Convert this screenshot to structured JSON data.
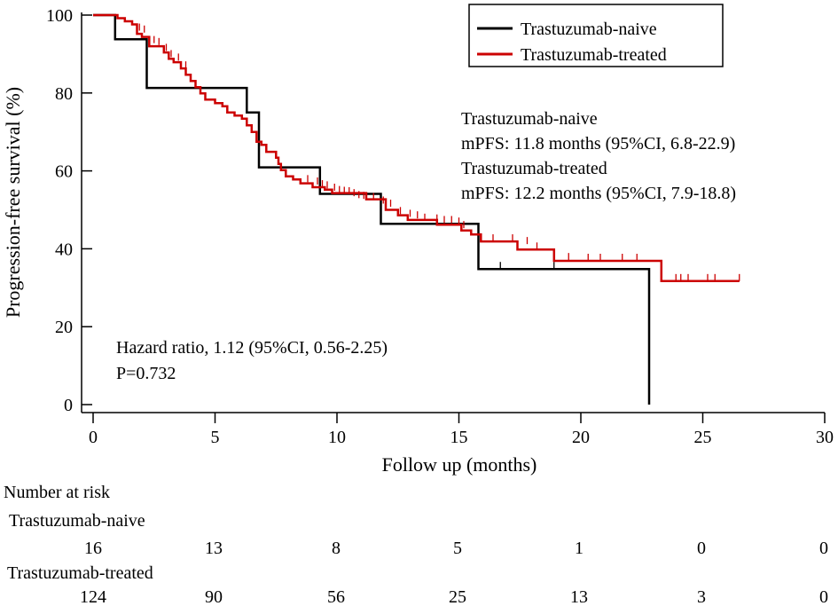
{
  "chart_data": {
    "type": "line",
    "subtype": "kaplan-meier",
    "title": "",
    "xlabel": "Follow up (months)",
    "ylabel": "Progression-free survival (%)",
    "xlim": [
      0,
      30
    ],
    "ylim": [
      0,
      100
    ],
    "xticks": [
      0,
      5,
      10,
      15,
      20,
      25,
      30
    ],
    "yticks": [
      0,
      20,
      40,
      60,
      80,
      100
    ],
    "legend_position": "top-right",
    "series": [
      {
        "name": "Trastuzumab-naive",
        "color": "#000000",
        "steps": [
          [
            0,
            100
          ],
          [
            0.9,
            100
          ],
          [
            0.9,
            93.8
          ],
          [
            2.2,
            93.8
          ],
          [
            2.2,
            81.3
          ],
          [
            6.3,
            81.3
          ],
          [
            6.3,
            75.0
          ],
          [
            6.8,
            75.0
          ],
          [
            6.8,
            60.9
          ],
          [
            9.3,
            60.9
          ],
          [
            9.3,
            54.1
          ],
          [
            11.8,
            54.1
          ],
          [
            11.8,
            46.4
          ],
          [
            15.8,
            46.4
          ],
          [
            15.8,
            34.8
          ],
          [
            22.8,
            34.8
          ],
          [
            22.8,
            0
          ]
        ],
        "censors": [
          [
            16.7,
            34.8
          ],
          [
            18.9,
            34.8
          ]
        ]
      },
      {
        "name": "Trastuzumab-treated",
        "color": "#cc0000",
        "steps": [
          [
            0,
            100
          ],
          [
            1.0,
            100
          ],
          [
            1.0,
            99.2
          ],
          [
            1.3,
            99.2
          ],
          [
            1.3,
            98.4
          ],
          [
            1.6,
            98.4
          ],
          [
            1.6,
            97.6
          ],
          [
            1.8,
            97.6
          ],
          [
            1.8,
            95.2
          ],
          [
            2.0,
            95.2
          ],
          [
            2.0,
            94.4
          ],
          [
            2.3,
            94.4
          ],
          [
            2.3,
            92.0
          ],
          [
            2.9,
            92.0
          ],
          [
            2.9,
            90.4
          ],
          [
            3.1,
            90.4
          ],
          [
            3.1,
            88.8
          ],
          [
            3.3,
            88.8
          ],
          [
            3.3,
            87.9
          ],
          [
            3.6,
            87.9
          ],
          [
            3.6,
            86.3
          ],
          [
            3.8,
            86.3
          ],
          [
            3.8,
            84.7
          ],
          [
            4.0,
            84.7
          ],
          [
            4.0,
            83.1
          ],
          [
            4.2,
            83.1
          ],
          [
            4.2,
            81.5
          ],
          [
            4.4,
            81.5
          ],
          [
            4.4,
            79.9
          ],
          [
            4.6,
            79.9
          ],
          [
            4.6,
            78.3
          ],
          [
            5.0,
            78.3
          ],
          [
            5.0,
            77.4
          ],
          [
            5.3,
            77.4
          ],
          [
            5.3,
            76.6
          ],
          [
            5.5,
            76.6
          ],
          [
            5.5,
            75.0
          ],
          [
            5.8,
            75.0
          ],
          [
            5.8,
            74.2
          ],
          [
            6.1,
            74.2
          ],
          [
            6.1,
            73.4
          ],
          [
            6.3,
            73.4
          ],
          [
            6.3,
            71.7
          ],
          [
            6.5,
            71.7
          ],
          [
            6.5,
            70.0
          ],
          [
            6.7,
            70.0
          ],
          [
            6.7,
            67.5
          ],
          [
            6.9,
            67.5
          ],
          [
            6.9,
            66.7
          ],
          [
            7.1,
            66.7
          ],
          [
            7.1,
            64.9
          ],
          [
            7.5,
            64.9
          ],
          [
            7.5,
            63.4
          ],
          [
            7.6,
            63.4
          ],
          [
            7.6,
            61.8
          ],
          [
            7.7,
            61.8
          ],
          [
            7.7,
            60.2
          ],
          [
            7.9,
            60.2
          ],
          [
            7.9,
            58.6
          ],
          [
            8.2,
            58.6
          ],
          [
            8.2,
            57.8
          ],
          [
            8.5,
            57.8
          ],
          [
            8.5,
            56.8
          ],
          [
            9.0,
            56.8
          ],
          [
            9.0,
            55.8
          ],
          [
            9.5,
            55.8
          ],
          [
            9.5,
            55.2
          ],
          [
            9.8,
            55.2
          ],
          [
            9.8,
            54.3
          ],
          [
            11.2,
            54.3
          ],
          [
            11.2,
            52.7
          ],
          [
            12.0,
            52.7
          ],
          [
            12.0,
            50.0
          ],
          [
            12.5,
            50.0
          ],
          [
            12.5,
            48.6
          ],
          [
            12.9,
            48.6
          ],
          [
            12.9,
            47.4
          ],
          [
            14.1,
            47.4
          ],
          [
            14.1,
            46.2
          ],
          [
            15.1,
            46.2
          ],
          [
            15.1,
            44.7
          ],
          [
            15.5,
            44.7
          ],
          [
            15.5,
            43.7
          ],
          [
            15.9,
            43.7
          ],
          [
            15.9,
            41.9
          ],
          [
            17.4,
            41.9
          ],
          [
            17.4,
            39.8
          ],
          [
            18.6,
            39.8
          ],
          [
            18.6,
            39.8
          ],
          [
            18.9,
            39.8
          ],
          [
            18.9,
            36.9
          ],
          [
            23.3,
            36.9
          ],
          [
            23.3,
            31.7
          ],
          [
            26.5,
            31.7
          ]
        ],
        "censors": [
          [
            1.9,
            96.0
          ],
          [
            2.1,
            95.5
          ],
          [
            2.5,
            92.8
          ],
          [
            2.7,
            92.3
          ],
          [
            3.0,
            90.8
          ],
          [
            3.2,
            89.2
          ],
          [
            3.5,
            88.3
          ],
          [
            3.8,
            86.3
          ],
          [
            8.8,
            57.1
          ],
          [
            9.2,
            56.5
          ],
          [
            9.4,
            55.8
          ],
          [
            9.6,
            55.5
          ],
          [
            9.9,
            54.9
          ],
          [
            10.1,
            54.3
          ],
          [
            10.3,
            54.1
          ],
          [
            10.5,
            54.0
          ],
          [
            10.7,
            53.5
          ],
          [
            10.9,
            53.0
          ],
          [
            11.1,
            52.8
          ],
          [
            11.5,
            52.5
          ],
          [
            11.9,
            51.6
          ],
          [
            12.2,
            50.8
          ],
          [
            12.6,
            48.9
          ],
          [
            13.0,
            48.2
          ],
          [
            13.3,
            47.8
          ],
          [
            13.6,
            47.2
          ],
          [
            14.1,
            47.0
          ],
          [
            14.4,
            46.6
          ],
          [
            14.7,
            46.6
          ],
          [
            15.0,
            46.2
          ],
          [
            15.2,
            45.3
          ],
          [
            16.4,
            41.9
          ],
          [
            17.2,
            41.9
          ],
          [
            17.8,
            41.2
          ],
          [
            18.2,
            39.8
          ],
          [
            19.5,
            37.1
          ],
          [
            20.3,
            36.9
          ],
          [
            20.8,
            36.9
          ],
          [
            21.7,
            36.9
          ],
          [
            22.3,
            36.9
          ],
          [
            23.9,
            31.7
          ],
          [
            24.1,
            31.7
          ],
          [
            24.4,
            31.7
          ],
          [
            25.2,
            31.7
          ],
          [
            25.5,
            31.7
          ],
          [
            26.5,
            31.7
          ]
        ]
      }
    ],
    "annotations": {
      "naive_label": "Trastuzumab-naive",
      "naive_mpfs": "mPFS: 11.8 months (95%CI, 6.8-22.9)",
      "treated_label": "Trastuzumab-treated",
      "treated_mpfs": "mPFS: 12.2 months (95%CI, 7.9-18.8)",
      "hazard_ratio": "Hazard ratio, 1.12 (95%CI, 0.56-2.25)",
      "p_value": "P=0.732"
    },
    "risk_table": {
      "title": "Number at risk",
      "times": [
        0,
        5,
        10,
        15,
        20,
        25,
        30
      ],
      "rows": [
        {
          "label": "Trastuzumab-naive",
          "values": [
            16,
            13,
            8,
            5,
            1,
            0,
            0
          ]
        },
        {
          "label": "Trastuzumab-treated",
          "values": [
            124,
            90,
            56,
            25,
            13,
            3,
            0
          ]
        }
      ]
    }
  }
}
